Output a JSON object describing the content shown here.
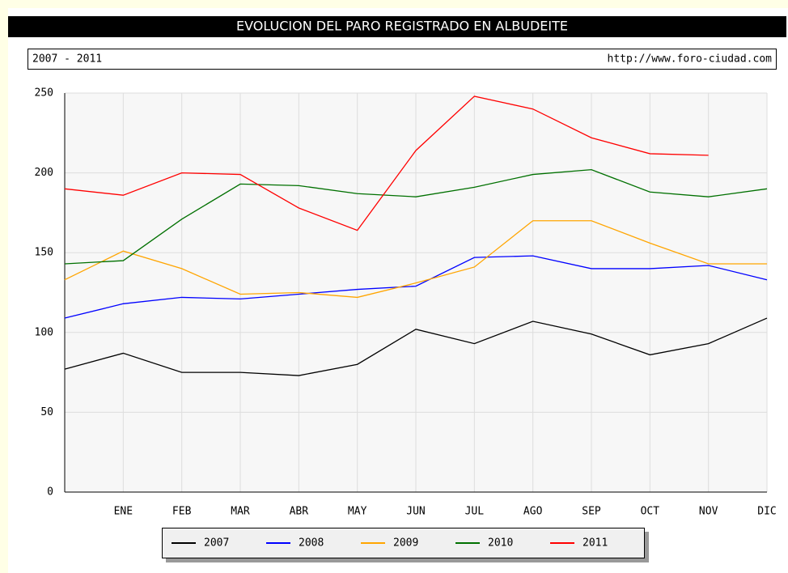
{
  "chart_data": {
    "type": "line",
    "title": "EVOLUCION DEL PARO REGISTRADO EN ALBUDEITE",
    "subtitle": "2007 - 2011",
    "source": "http://www.foro-ciudad.com",
    "categories": [
      null,
      "ENE",
      "FEB",
      "MAR",
      "ABR",
      "MAY",
      "JUN",
      "JUL",
      "AGO",
      "SEP",
      "OCT",
      "NOV",
      "DIC"
    ],
    "series": [
      {
        "name": "2007",
        "color": "#000000",
        "values": [
          77,
          87,
          75,
          75,
          73,
          80,
          102,
          93,
          107,
          99,
          86,
          93,
          109
        ]
      },
      {
        "name": "2008",
        "color": "#0000ff",
        "values": [
          109,
          118,
          122,
          121,
          124,
          127,
          129,
          147,
          148,
          140,
          140,
          142,
          133
        ]
      },
      {
        "name": "2009",
        "color": "#ffa500",
        "values": [
          133,
          151,
          140,
          124,
          125,
          122,
          131,
          141,
          170,
          170,
          156,
          143,
          143
        ]
      },
      {
        "name": "2010",
        "color": "#007000",
        "values": [
          143,
          145,
          171,
          193,
          192,
          187,
          185,
          191,
          199,
          202,
          188,
          185,
          190
        ]
      },
      {
        "name": "2011",
        "color": "#ff0000",
        "values": [
          190,
          186,
          200,
          199,
          178,
          164,
          214,
          248,
          240,
          222,
          212,
          211,
          null
        ]
      }
    ],
    "ylim": [
      0,
      250
    ],
    "yticks": [
      0,
      50,
      100,
      150,
      200,
      250
    ],
    "grid": true
  }
}
